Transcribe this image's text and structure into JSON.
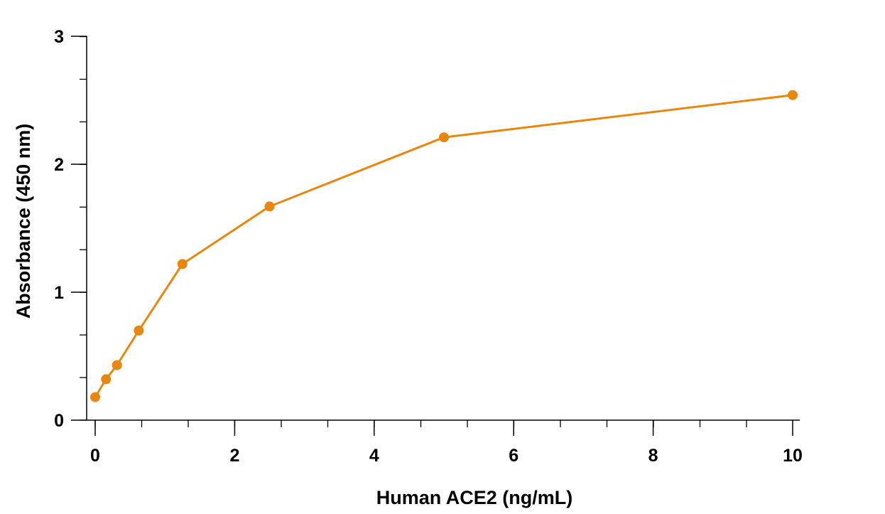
{
  "chart_data": {
    "type": "line",
    "title": "",
    "xlabel": "Human ACE2 (ng/mL)",
    "ylabel": "Absorbance (450 nm)",
    "xlim": [
      0,
      10
    ],
    "ylim": [
      0,
      3
    ],
    "x_ticks": [
      0,
      2,
      4,
      6,
      8,
      10
    ],
    "x_tick_labels": [
      "0",
      "2",
      "4",
      "6",
      "8",
      "10"
    ],
    "x_minor_step": 0.667,
    "y_ticks": [
      0,
      1,
      2,
      3
    ],
    "y_tick_labels": [
      "0",
      "1",
      "2",
      "3"
    ],
    "y_minor_step": 0.333,
    "grid": false,
    "legend": "none",
    "series": [
      {
        "color": "#E8870E",
        "marker": "circle",
        "x": [
          0,
          0.156,
          0.313,
          0.625,
          1.25,
          2.5,
          5,
          10
        ],
        "y": [
          0.18,
          0.32,
          0.43,
          0.7,
          1.22,
          1.67,
          2.21,
          2.54
        ]
      }
    ]
  }
}
